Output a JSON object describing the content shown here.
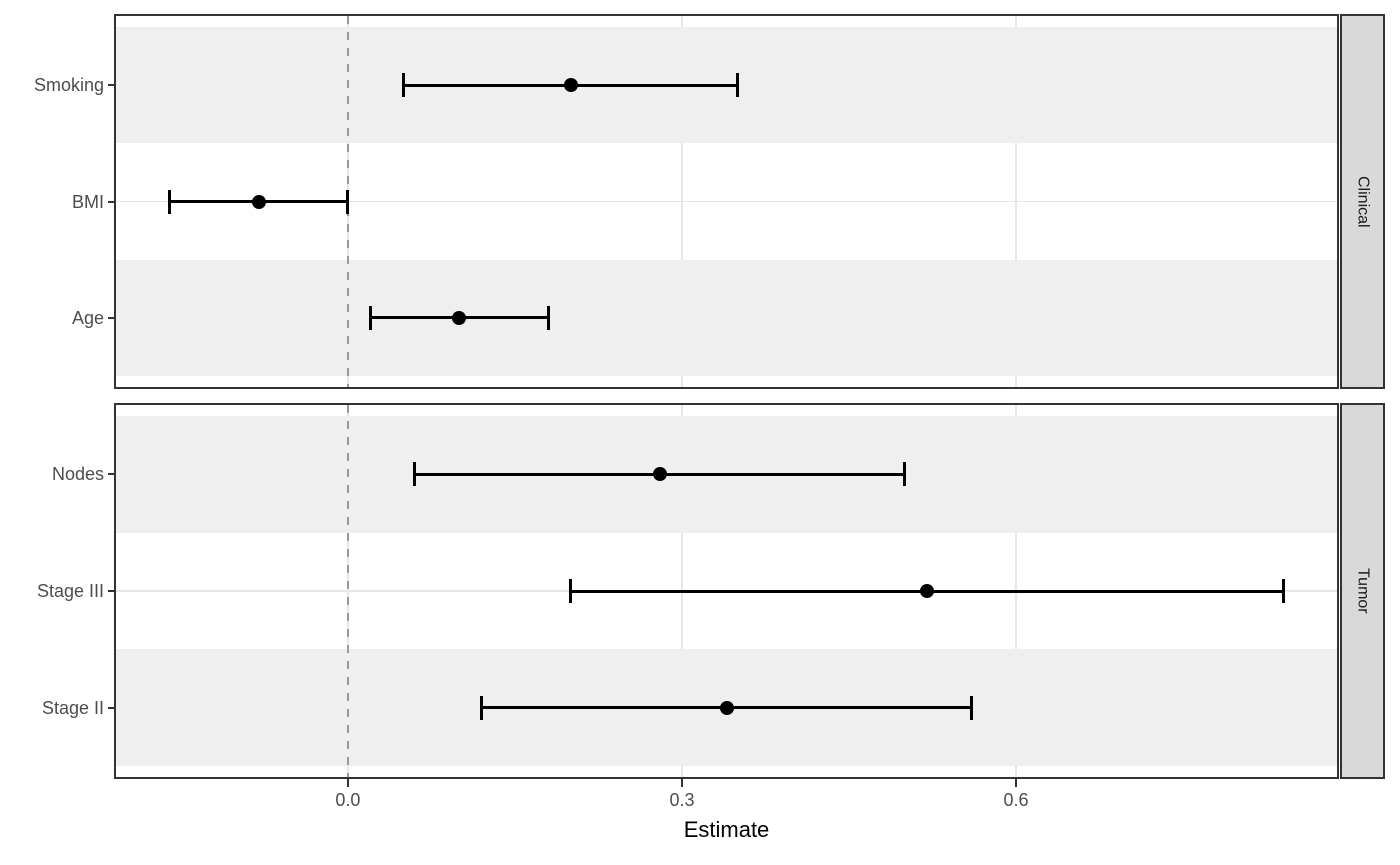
{
  "chart_data": {
    "type": "scatter",
    "subtype": "forest-plot-with-error-bars",
    "title": "",
    "xlabel": "Estimate",
    "ylabel": "",
    "xlim": [
      -0.21,
      0.89
    ],
    "x_ticks": [
      0.0,
      0.3,
      0.6
    ],
    "x_tick_labels": [
      "0.0",
      "0.3",
      "0.6"
    ],
    "reference_line_x": 0.0,
    "grid": "major-only",
    "legend": "none",
    "facets": [
      {
        "label": "Clinical",
        "rows": [
          {
            "label": "Smoking",
            "estimate": 0.2,
            "ci_low": 0.05,
            "ci_high": 0.35
          },
          {
            "label": "BMI",
            "estimate": -0.08,
            "ci_low": -0.16,
            "ci_high": 0.0
          },
          {
            "label": "Age",
            "estimate": 0.1,
            "ci_low": 0.02,
            "ci_high": 0.18
          }
        ]
      },
      {
        "label": "Tumor",
        "rows": [
          {
            "label": "Nodes",
            "estimate": 0.28,
            "ci_low": 0.06,
            "ci_high": 0.5
          },
          {
            "label": "Stage III",
            "estimate": 0.52,
            "ci_low": 0.2,
            "ci_high": 0.84
          },
          {
            "label": "Stage II",
            "estimate": 0.34,
            "ci_low": 0.12,
            "ci_high": 0.56
          }
        ]
      }
    ],
    "colors": {
      "background": "#ffffff",
      "stripe": "#efefef",
      "gridline": "#e7e7e7",
      "panel_border": "#333333",
      "strip_bg": "#d9d9d9",
      "strip_border": "#333333",
      "strip_text": "#1a1a1a",
      "reference_line": "#999999",
      "point": "#000000",
      "errorbar": "#000000",
      "axis_text": "#4d4d4d",
      "axis_tick": "#333333",
      "axis_title_color": "#000000"
    }
  }
}
